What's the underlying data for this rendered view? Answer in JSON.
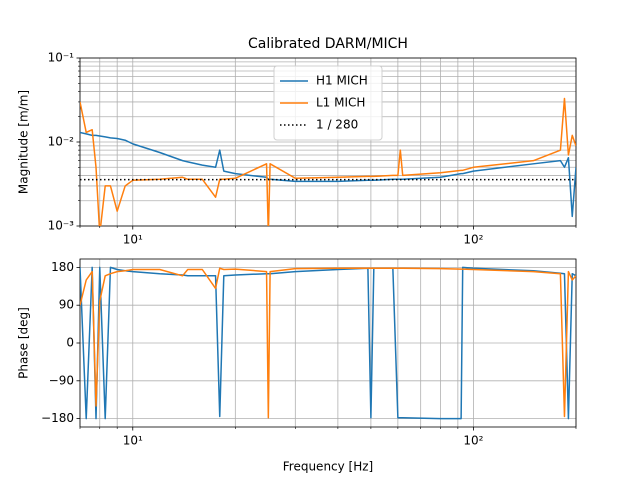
{
  "chart_data": [
    {
      "type": "line",
      "title": "Calibrated DARM/MICH",
      "ylabel": "Magnitude [m/m]",
      "xscale": "log",
      "yscale": "log",
      "grid": "both",
      "legend": "upper center",
      "xlim": [
        7,
        200
      ],
      "ylim": [
        0.001,
        0.1
      ],
      "xticks": [
        {
          "value": 10,
          "label": "10¹"
        },
        {
          "value": 100,
          "label": "10²"
        }
      ],
      "xminorticks": [
        7,
        8,
        9,
        20,
        30,
        40,
        50,
        60,
        70,
        80,
        90,
        200
      ],
      "yticks": [
        {
          "value": 0.001,
          "label": "10⁻³"
        },
        {
          "value": 0.01,
          "label": "10⁻²"
        },
        {
          "value": 0.1,
          "label": "10⁻¹"
        }
      ],
      "yminorticks": [
        0.002,
        0.003,
        0.004,
        0.005,
        0.006,
        0.007,
        0.008,
        0.009,
        0.02,
        0.03,
        0.04,
        0.05,
        0.06,
        0.07,
        0.08,
        0.09
      ],
      "x": [
        7,
        7.3,
        7.6,
        7.8,
        8,
        8.3,
        8.6,
        9,
        9.5,
        10,
        12,
        14,
        14.5,
        16,
        17.5,
        18,
        18.5,
        20,
        24.7,
        25,
        25.3,
        30,
        40,
        49,
        50,
        51,
        58,
        60,
        61,
        62,
        80,
        92,
        93,
        100,
        150,
        180,
        185,
        190,
        195,
        200
      ],
      "series": [
        {
          "name": "H1 MICH",
          "color": "#1f77b4",
          "linestyle": "solid",
          "values": [
            0.013,
            0.0125,
            0.012,
            0.012,
            0.0118,
            0.0115,
            0.0112,
            0.011,
            0.0105,
            0.0095,
            0.0075,
            0.006,
            0.0058,
            0.0053,
            0.005,
            0.008,
            0.0045,
            0.0042,
            0.0038,
            0.0036,
            0.0036,
            0.0034,
            0.0034,
            0.0035,
            0.0035,
            0.0035,
            0.0036,
            0.0036,
            0.0036,
            0.0036,
            0.0038,
            0.0042,
            0.0042,
            0.0045,
            0.0055,
            0.006,
            0.005,
            0.0065,
            0.0013,
            0.005
          ]
        },
        {
          "name": "L1 MICH",
          "color": "#ff7f0e",
          "linestyle": "solid",
          "values": [
            0.03,
            0.013,
            0.014,
            0.005,
            0.0008,
            0.003,
            0.003,
            0.0015,
            0.003,
            0.0035,
            0.0036,
            0.0038,
            0.0036,
            0.0036,
            0.0022,
            0.0036,
            0.0036,
            0.0037,
            0.0055,
            0.0008,
            0.0055,
            0.0037,
            0.0038,
            0.0039,
            0.0039,
            0.0039,
            0.004,
            0.004,
            0.008,
            0.004,
            0.0043,
            0.0046,
            0.0046,
            0.005,
            0.006,
            0.008,
            0.033,
            0.007,
            0.012,
            0.009
          ]
        },
        {
          "name": "1 / 280",
          "color": "#000000",
          "linestyle": "dotted",
          "x": [
            7,
            200
          ],
          "values": [
            0.00357,
            0.00357
          ]
        }
      ]
    },
    {
      "type": "line",
      "ylabel": "Phase [deg]",
      "xlabel": "Frequency [Hz]",
      "xscale": "log",
      "yscale": "linear",
      "grid": "both",
      "xlim": [
        7,
        200
      ],
      "ylim": [
        -200,
        200
      ],
      "xticks": [
        {
          "value": 10,
          "label": "10¹"
        },
        {
          "value": 100,
          "label": "10²"
        }
      ],
      "xminorticks": [
        7,
        8,
        9,
        20,
        30,
        40,
        50,
        60,
        70,
        80,
        90,
        200
      ],
      "yticks": [
        {
          "value": -180,
          "label": "−180"
        },
        {
          "value": -90,
          "label": "−90"
        },
        0,
        90,
        180
      ],
      "x": [
        7,
        7.3,
        7.6,
        7.8,
        8,
        8.3,
        8.6,
        9,
        9.5,
        10,
        12,
        14,
        14.5,
        16,
        17.5,
        18,
        18.5,
        20,
        24.7,
        25,
        25.3,
        30,
        40,
        49,
        50,
        51,
        58,
        60,
        61,
        62,
        80,
        92,
        93,
        100,
        150,
        180,
        185,
        190,
        195,
        200
      ],
      "series": [
        {
          "name": "H1 MICH",
          "color": "#1f77b4",
          "linestyle": "solid",
          "values": [
            180,
            -180,
            180,
            -180,
            180,
            -180,
            180,
            175,
            172,
            170,
            165,
            162,
            160,
            160,
            160,
            -175,
            160,
            162,
            165,
            165,
            165,
            170,
            175,
            178,
            -178,
            178,
            178,
            -178,
            -178,
            -178,
            -180,
            -180,
            180,
            178,
            172,
            166,
            165,
            -180,
            165,
            160
          ]
        },
        {
          "name": "L1 MICH",
          "color": "#ff7f0e",
          "linestyle": "solid",
          "values": [
            90,
            150,
            170,
            -150,
            100,
            160,
            165,
            170,
            172,
            175,
            175,
            160,
            175,
            175,
            130,
            178,
            175,
            176,
            170,
            -178,
            170,
            177,
            178,
            178,
            178,
            178,
            178,
            178,
            178,
            178,
            177,
            176,
            176,
            175,
            170,
            165,
            -175,
            170,
            150,
            160
          ]
        }
      ]
    }
  ]
}
